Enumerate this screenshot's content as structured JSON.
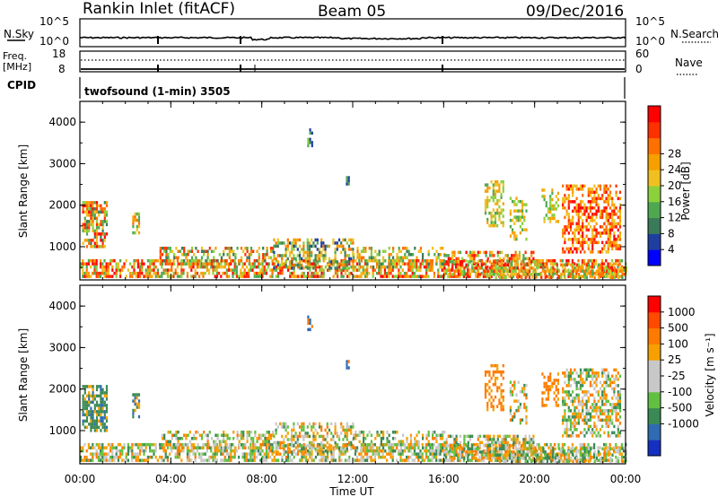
{
  "header": {
    "station_label": "Rankin Inlet (fitACF)",
    "beam_label": "Beam 05",
    "date_label": "09/Dec/2016"
  },
  "noise_panel": {
    "left_label": "N.Sky",
    "right_label": "N.Search",
    "left_ticks": [
      "10^5",
      "10^0"
    ],
    "right_ticks": [
      "10^5",
      "10^0"
    ]
  },
  "freq_panel": {
    "left_label_1": "Freq.",
    "left_label_2": "[MHz]",
    "left_ticks": [
      "18",
      "8"
    ],
    "right_label": "Nave",
    "right_ticks": [
      "60",
      "0"
    ],
    "cpid_label": "CPID",
    "cpid_text": "twofsound (1-min) 3505"
  },
  "chart_data": [
    {
      "type": "heatmap",
      "name": "power",
      "ylabel": "Slant Range [km]",
      "ylim": [
        200,
        4500
      ],
      "yticks": [
        "1000",
        "2000",
        "3000",
        "4000"
      ],
      "colorbar_label": "Power [dB]",
      "colorbar_ticks": [
        "4",
        "8",
        "12",
        "16",
        "20",
        "24",
        "28"
      ],
      "colorbar_colors": [
        "#0000ff",
        "#1e3f9f",
        "#3a7a5a",
        "#4fa850",
        "#8bd13c",
        "#f0c020",
        "#f5a000",
        "#ff7000",
        "#ff3000",
        "#ff0000"
      ]
    },
    {
      "type": "heatmap",
      "name": "velocity",
      "ylabel": "Slant Range [km]",
      "ylim": [
        200,
        4500
      ],
      "yticks": [
        "1000",
        "2000",
        "3000",
        "4000"
      ],
      "colorbar_label": "Velocity [m s⁻¹]",
      "colorbar_ticks": [
        "1000",
        "500",
        "100",
        "25",
        "-25",
        "-100",
        "-500",
        "-1000"
      ],
      "colorbar_colors": [
        "#1530c0",
        "#2f6bb3",
        "#3a8a55",
        "#62c040",
        "#c8c8c8",
        "#c8c8c8",
        "#f5a000",
        "#ff7a00",
        "#ff4a00",
        "#ff0000"
      ]
    }
  ],
  "xaxis": {
    "ticks": [
      "00:00",
      "04:00",
      "08:00",
      "12:00",
      "16:00",
      "20:00",
      "00:00"
    ],
    "label": "Time UT"
  }
}
